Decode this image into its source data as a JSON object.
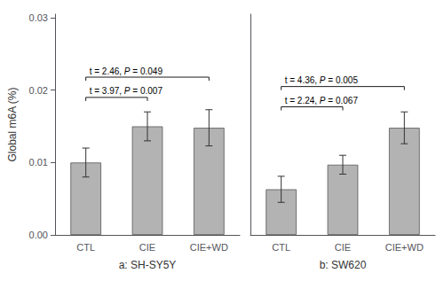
{
  "chart_data": [
    {
      "type": "bar",
      "xlabel": "a: SH-SY5Y",
      "ylabel": "Global m6A (%)",
      "categories": [
        "CTL",
        "CIE",
        "CIE+WD"
      ],
      "values": [
        0.01,
        0.015,
        0.0148
      ],
      "errors": [
        0.002,
        0.002,
        0.0025
      ],
      "color": "#b3b3b3",
      "ylim": [
        0.0,
        0.0305
      ],
      "yticks": [
        {
          "value": 0,
          "label": "0.00"
        },
        0.01,
        0.02,
        0.03
      ],
      "grid": false,
      "annotations": [
        {
          "text": "t = 3.97, P = 0.007",
          "from": "CTL",
          "to": "CIE",
          "y": 0.019
        },
        {
          "text": "t = 2.46, P = 0.049",
          "from": "CTL",
          "to": "CIE+WD",
          "y": 0.0218
        }
      ]
    },
    {
      "type": "bar",
      "xlabel": "b: SW620",
      "categories": [
        "CTL",
        "CIE",
        "CIE+WD"
      ],
      "values": [
        0.0063,
        0.0097,
        0.0148
      ],
      "errors": [
        0.0018,
        0.0013,
        0.0022
      ],
      "color": "#b3b3b3",
      "ylim": [
        0.0,
        0.0305
      ],
      "yticks": [
        {
          "value": 0,
          "label": "0.00"
        },
        0.01,
        0.02,
        0.03
      ],
      "grid": false,
      "tick_labels": "x",
      "annotations": [
        {
          "text": "t = 2.24, P = 0.067",
          "from": "CTL",
          "to": "CIE",
          "y": 0.0177
        },
        {
          "text": "t = 4.36, P = 0.005",
          "from": "CTL",
          "to": "CIE+WD",
          "y": 0.0205
        }
      ]
    }
  ]
}
